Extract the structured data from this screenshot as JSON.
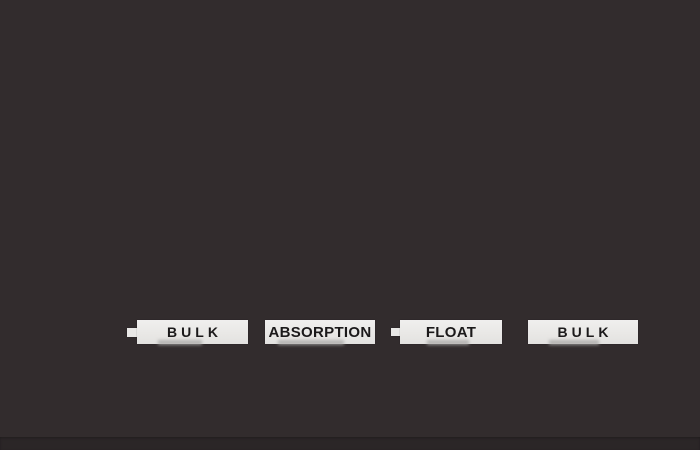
{
  "colors": {
    "background": "#322C2D",
    "bottom_strip": "#2B2627",
    "label_bg": "#E9E8E6",
    "label_text": "#1B191A",
    "smudge": "#A9A8A6"
  },
  "labels": [
    {
      "text": "BULK"
    },
    {
      "text": "ABSORPTION"
    },
    {
      "text": "FLOAT"
    },
    {
      "text": "BULK"
    }
  ]
}
